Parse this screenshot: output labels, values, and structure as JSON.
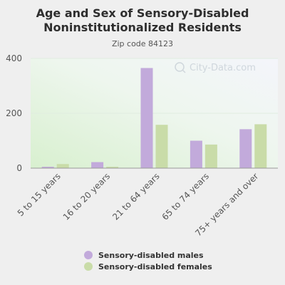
{
  "chart_data": {
    "type": "bar",
    "title": "Age and Sex of Sensory-Disabled Noninstitutionalized Residents",
    "subtitle": "Zip code 84123",
    "categories": [
      "5 to 15 years",
      "16 to 20 years",
      "21 to 64 years",
      "65 to 74 years",
      "75+ years and over"
    ],
    "series": [
      {
        "name": "Sensory-disabled males",
        "color": "#c2aadb",
        "values": [
          5,
          22,
          365,
          100,
          142
        ]
      },
      {
        "name": "Sensory-disabled females",
        "color": "#c9dca8",
        "values": [
          15,
          5,
          158,
          86,
          160
        ]
      }
    ],
    "ylim": [
      0,
      400
    ],
    "yticks": [
      0,
      200,
      400
    ],
    "grid": true,
    "legend_position": "bottom",
    "watermark": "City-Data.com"
  }
}
